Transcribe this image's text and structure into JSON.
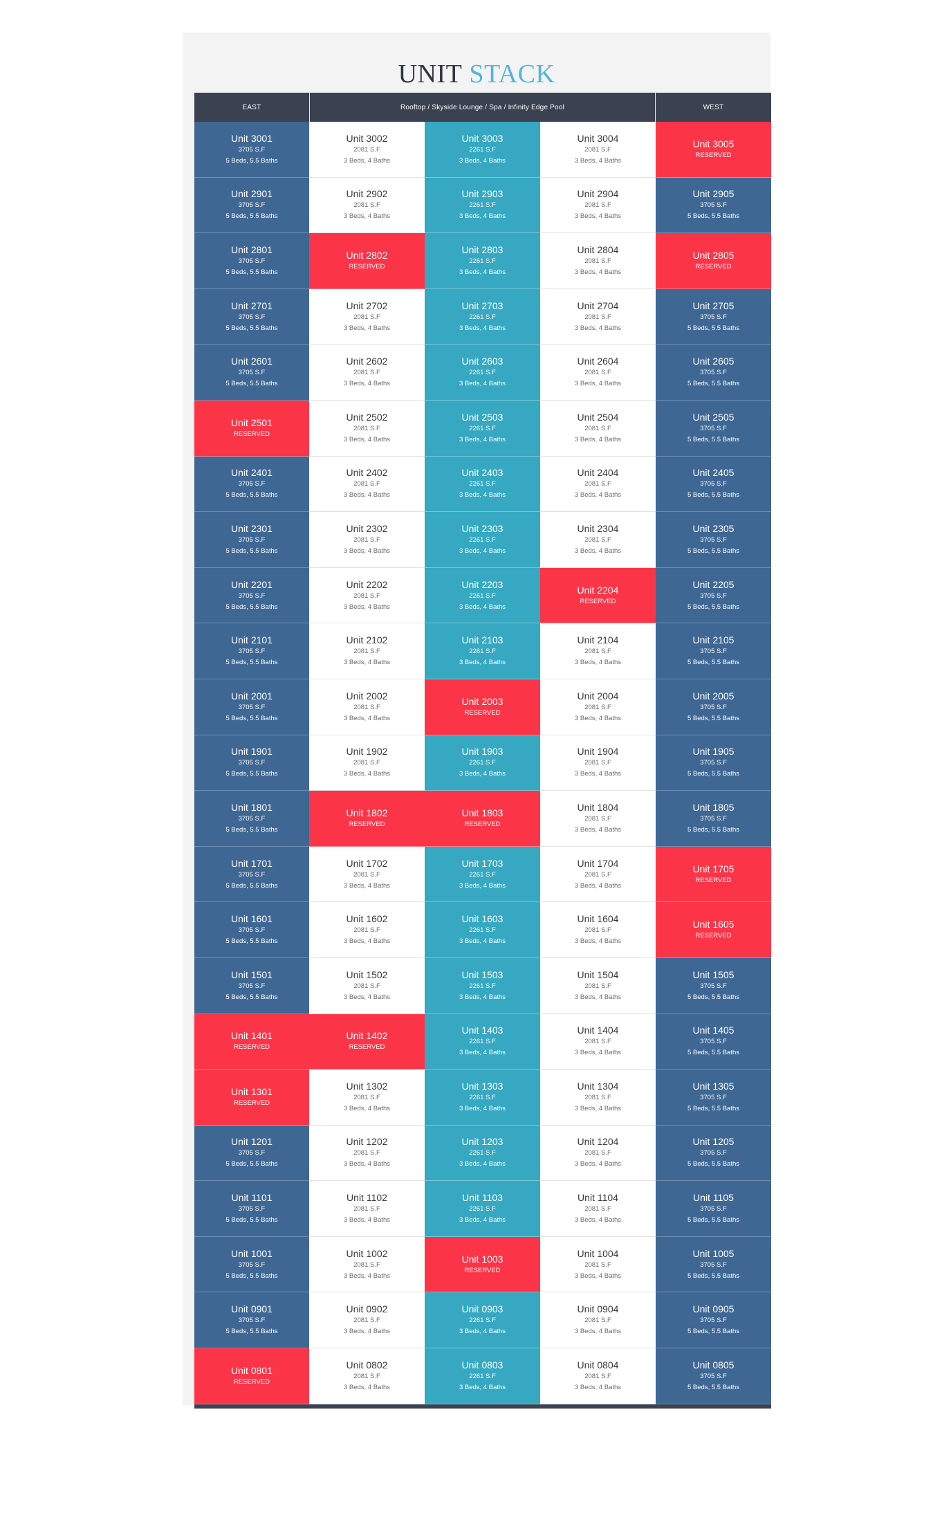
{
  "title": {
    "part1": "UNIT",
    "part2": "STACK"
  },
  "headers": {
    "east": "EAST",
    "middle": "Rooftop / Skyside Lounge / Spa / Infinity Edge Pool",
    "west": "WEST"
  },
  "colors": {
    "navy": "#3e6794",
    "teal": "#36a8c1",
    "white": "#ffffff",
    "reserved": "#fc3448",
    "header": "#3a4150",
    "title_accent": "#4fb6df"
  },
  "reserved_label": "RESERVED",
  "unit_types": {
    "01": {
      "sf": "3705 S.F",
      "baths": "5 Beds, 5.5 Baths",
      "color": "navy"
    },
    "02": {
      "sf": "2081 S.F",
      "baths": "3 Beds, 4 Baths",
      "color": "white"
    },
    "03": {
      "sf": "2261 S.F",
      "baths": "3 Beds, 4 Baths",
      "color": "teal"
    },
    "04": {
      "sf": "2081 S.F",
      "baths": "3 Beds, 4 Baths",
      "color": "white"
    },
    "05": {
      "sf": "3705 S.F",
      "baths": "5 Beds, 5.5 Baths",
      "color": "navy"
    }
  },
  "rows": [
    {
      "floor": "30",
      "reserved": [
        "05"
      ]
    },
    {
      "floor": "29",
      "reserved": []
    },
    {
      "floor": "28",
      "reserved": [
        "02",
        "05"
      ]
    },
    {
      "floor": "27",
      "reserved": []
    },
    {
      "floor": "26",
      "reserved": []
    },
    {
      "floor": "25",
      "reserved": [
        "01"
      ]
    },
    {
      "floor": "24",
      "reserved": []
    },
    {
      "floor": "23",
      "reserved": []
    },
    {
      "floor": "22",
      "reserved": [
        "04"
      ]
    },
    {
      "floor": "21",
      "reserved": []
    },
    {
      "floor": "20",
      "reserved": [
        "03"
      ]
    },
    {
      "floor": "19",
      "reserved": []
    },
    {
      "floor": "18",
      "reserved": [
        "02",
        "03"
      ]
    },
    {
      "floor": "17",
      "reserved": [
        "05"
      ]
    },
    {
      "floor": "16",
      "reserved": [
        "05"
      ]
    },
    {
      "floor": "15",
      "reserved": []
    },
    {
      "floor": "14",
      "reserved": [
        "01",
        "02"
      ]
    },
    {
      "floor": "13",
      "reserved": [
        "01"
      ]
    },
    {
      "floor": "12",
      "reserved": []
    },
    {
      "floor": "11",
      "reserved": []
    },
    {
      "floor": "10",
      "reserved": [
        "03"
      ]
    },
    {
      "floor": "09",
      "reserved": []
    },
    {
      "floor": "08",
      "reserved": [
        "01"
      ]
    }
  ]
}
